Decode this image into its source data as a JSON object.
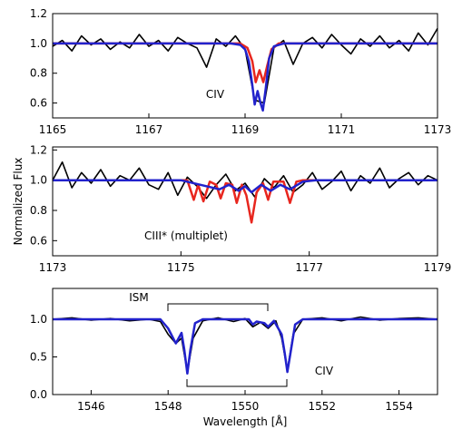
{
  "chart_data": [
    {
      "type": "line",
      "xlim": [
        1165,
        1173
      ],
      "ylim": [
        0.5,
        1.2
      ],
      "xticks": [
        1165,
        1167,
        1169,
        1171,
        1173
      ],
      "yticks": [
        0.6,
        0.8,
        {
          "value": 1.0,
          "label": "1.0"
        },
        1.2
      ],
      "annotation": "CIV",
      "series": [
        {
          "color": "#000000",
          "x": [
            1165,
            1165.2,
            1165.4,
            1165.6,
            1165.8,
            1166,
            1166.2,
            1166.4,
            1166.6,
            1166.8,
            1167,
            1167.2,
            1167.4,
            1167.6,
            1167.8,
            1168,
            1168.2,
            1168.4,
            1168.6,
            1168.8,
            1169,
            1169.2,
            1169.4,
            1169.6,
            1169.8,
            1170,
            1170.2,
            1170.4,
            1170.6,
            1170.8,
            1171,
            1171.2,
            1171.4,
            1171.6,
            1171.8,
            1172,
            1172.2,
            1172.4,
            1172.6,
            1172.8,
            1173
          ],
          "values": [
            0.98,
            1.02,
            0.95,
            1.05,
            0.99,
            1.03,
            0.96,
            1.01,
            0.97,
            1.06,
            0.98,
            1.02,
            0.95,
            1.04,
            1.0,
            0.97,
            0.84,
            1.03,
            0.98,
            1.05,
            0.96,
            0.62,
            0.6,
            0.97,
            1.02,
            0.86,
            1.0,
            1.04,
            0.97,
            1.06,
            0.99,
            0.93,
            1.03,
            0.98,
            1.05,
            0.97,
            1.02,
            0.95,
            1.07,
            0.99,
            1.1
          ]
        },
        {
          "color": "#e8261e",
          "x": [
            1165,
            1168.9,
            1169.05,
            1169.15,
            1169.22,
            1169.3,
            1169.38,
            1169.46,
            1169.55,
            1169.7,
            1173
          ],
          "values": [
            1,
            1,
            0.97,
            0.88,
            0.74,
            0.82,
            0.74,
            0.85,
            0.96,
            1,
            1
          ]
        },
        {
          "color": "#2222cc",
          "x": [
            1165,
            1168.7,
            1168.9,
            1169.0,
            1169.08,
            1169.15,
            1169.2,
            1169.26,
            1169.32,
            1169.37,
            1169.43,
            1169.5,
            1169.6,
            1169.8,
            1173
          ],
          "values": [
            1,
            1,
            0.99,
            0.96,
            0.88,
            0.72,
            0.59,
            0.68,
            0.6,
            0.55,
            0.7,
            0.9,
            0.98,
            1,
            1
          ]
        }
      ]
    },
    {
      "type": "line",
      "xlim": [
        1173,
        1179
      ],
      "ylim": [
        0.5,
        1.22
      ],
      "xticks": [
        1173,
        1175,
        1177,
        1179
      ],
      "yticks": [
        0.6,
        0.8,
        {
          "value": 1.0,
          "label": "1.0"
        },
        1.2
      ],
      "y_label": "Normalized Flux",
      "annotation": "CIII* (multiplet)",
      "series": [
        {
          "color": "#000000",
          "x": [
            1173,
            1173.15,
            1173.3,
            1173.45,
            1173.6,
            1173.75,
            1173.9,
            1174.05,
            1174.2,
            1174.35,
            1174.5,
            1174.65,
            1174.8,
            1174.95,
            1175.1,
            1175.25,
            1175.4,
            1175.55,
            1175.7,
            1175.85,
            1176,
            1176.15,
            1176.3,
            1176.45,
            1176.6,
            1176.75,
            1176.9,
            1177.05,
            1177.2,
            1177.35,
            1177.5,
            1177.65,
            1177.8,
            1177.95,
            1178.1,
            1178.25,
            1178.4,
            1178.55,
            1178.7,
            1178.85,
            1179
          ],
          "values": [
            1.0,
            1.12,
            0.95,
            1.05,
            0.98,
            1.07,
            0.96,
            1.03,
            1.0,
            1.08,
            0.97,
            0.94,
            1.05,
            0.9,
            1.02,
            0.96,
            0.88,
            0.97,
            1.04,
            0.93,
            0.98,
            0.89,
            1.01,
            0.95,
            1.03,
            0.92,
            0.97,
            1.05,
            0.94,
            0.99,
            1.06,
            0.93,
            1.03,
            0.98,
            1.08,
            0.95,
            1.01,
            1.05,
            0.97,
            1.03,
            1.0
          ]
        },
        {
          "color": "#e8261e",
          "x": [
            1173,
            1175.1,
            1175.2,
            1175.27,
            1175.35,
            1175.45,
            1175.55,
            1175.62,
            1175.7,
            1175.8,
            1175.87,
            1175.95,
            1176.02,
            1176.1,
            1176.18,
            1176.28,
            1176.36,
            1176.44,
            1176.6,
            1176.7,
            1176.8,
            1176.9,
            1179
          ],
          "values": [
            1,
            1,
            0.87,
            0.97,
            0.86,
            0.99,
            0.97,
            0.88,
            0.98,
            0.97,
            0.85,
            0.97,
            0.9,
            0.72,
            0.92,
            0.98,
            0.87,
            0.99,
            0.99,
            0.85,
            0.99,
            1,
            1
          ]
        },
        {
          "color": "#2222cc",
          "x": [
            1173,
            1175.0,
            1175.3,
            1175.6,
            1175.75,
            1175.9,
            1176.0,
            1176.1,
            1176.25,
            1176.4,
            1176.55,
            1176.7,
            1176.9,
            1177.1,
            1179
          ],
          "values": [
            1,
            1,
            0.97,
            0.94,
            0.97,
            0.93,
            0.96,
            0.92,
            0.97,
            0.93,
            0.97,
            0.94,
            0.99,
            1,
            1
          ]
        }
      ]
    },
    {
      "type": "line",
      "xlim": [
        1545,
        1555
      ],
      "ylim": [
        0,
        1.41
      ],
      "xticks": [
        1546,
        1548,
        1550,
        1552,
        1554
      ],
      "yticks": [
        {
          "value": 0,
          "label": "0.0"
        },
        0.5,
        {
          "value": 1,
          "label": "1.0"
        }
      ],
      "x_label": "Wavelength [Å]",
      "annotation": "CIV",
      "ism_label": "ISM",
      "series": [
        {
          "color": "#000000",
          "x": [
            1545,
            1545.5,
            1546,
            1546.5,
            1547,
            1547.5,
            1547.8,
            1548,
            1548.2,
            1548.35,
            1548.5,
            1548.65,
            1548.9,
            1549.3,
            1549.7,
            1550,
            1550.2,
            1550.4,
            1550.6,
            1550.8,
            1550.95,
            1551.1,
            1551.25,
            1551.5,
            1552,
            1552.5,
            1553,
            1553.5,
            1554,
            1554.5,
            1555
          ],
          "values": [
            1.0,
            1.02,
            0.99,
            1.01,
            0.98,
            1.0,
            0.97,
            0.8,
            0.68,
            0.75,
            0.3,
            0.75,
            0.98,
            1.02,
            0.97,
            1.01,
            0.9,
            0.96,
            0.88,
            0.98,
            0.75,
            0.32,
            0.8,
            1.0,
            1.02,
            0.98,
            1.03,
            0.99,
            1.01,
            1.02,
            1.0
          ]
        },
        {
          "color": "#2222cc",
          "x": [
            1545,
            1547.8,
            1548.0,
            1548.2,
            1548.35,
            1548.42,
            1548.5,
            1548.58,
            1548.7,
            1548.9,
            1550.1,
            1550.2,
            1550.3,
            1550.5,
            1550.6,
            1550.75,
            1550.95,
            1551.03,
            1551.1,
            1551.18,
            1551.3,
            1551.5,
            1555
          ],
          "values": [
            1,
            1,
            0.88,
            0.68,
            0.82,
            0.6,
            0.28,
            0.6,
            0.95,
            1,
            1,
            0.93,
            0.97,
            0.95,
            0.9,
            0.98,
            0.8,
            0.55,
            0.3,
            0.55,
            0.93,
            1,
            1
          ]
        }
      ]
    }
  ]
}
